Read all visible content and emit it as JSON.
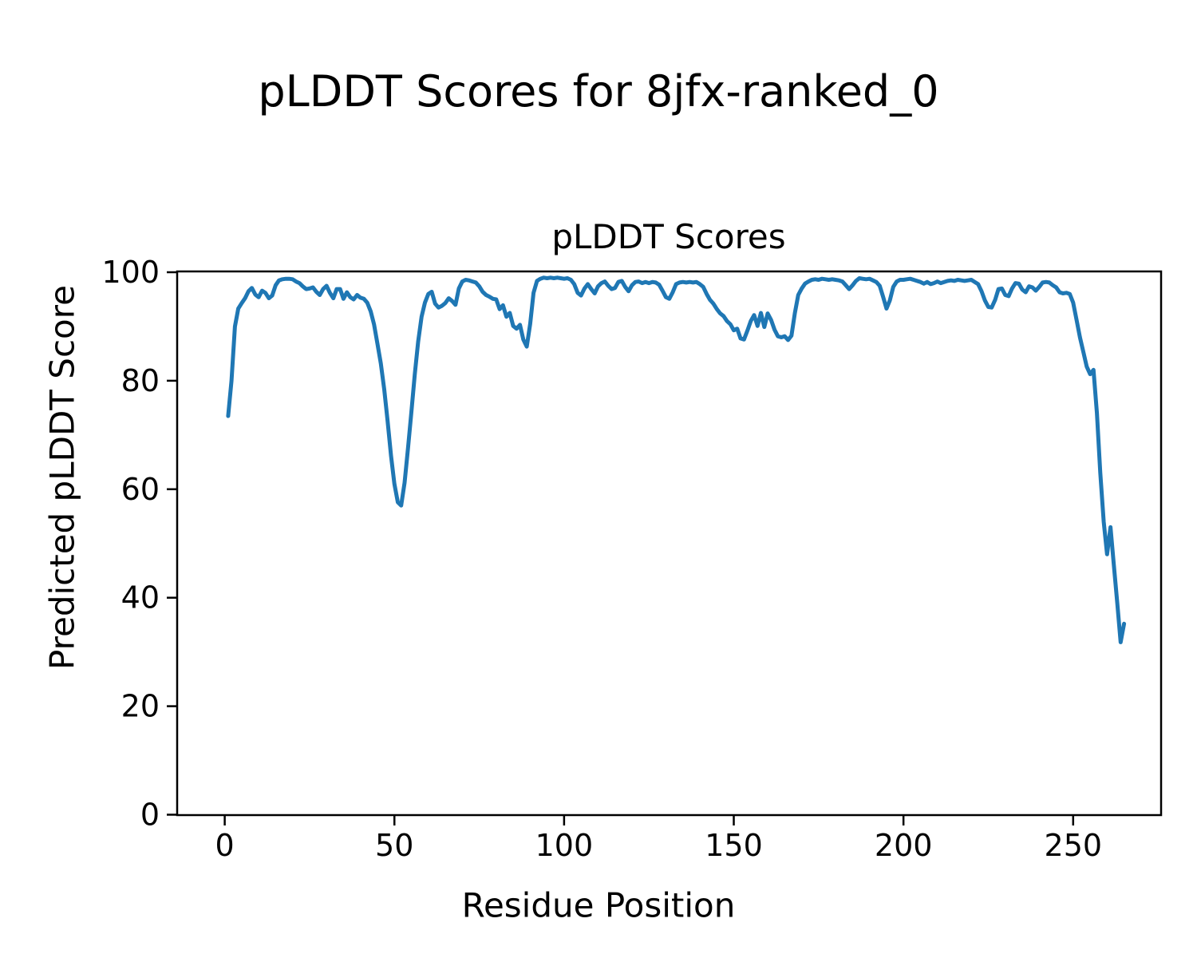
{
  "figure": {
    "suptitle": "pLDDT Scores for 8jfx-ranked_0",
    "axes_title": "pLDDT Scores",
    "xlabel": "Residue Position",
    "ylabel": "Predicted pLDDT Score"
  },
  "chart_data": {
    "type": "line",
    "title": "pLDDT Scores",
    "suptitle": "pLDDT Scores for 8jfx-ranked_0",
    "xlabel": "Residue Position",
    "ylabel": "Predicted pLDDT Score",
    "x_ticks": [
      0,
      50,
      100,
      150,
      200,
      250
    ],
    "y_ticks": [
      0,
      20,
      40,
      60,
      80,
      100
    ],
    "ylim": [
      0,
      100
    ],
    "xlim": [
      -13,
      278
    ],
    "grid": false,
    "legend": null,
    "line_color": "#1f77b4",
    "axis_color": "#000000",
    "series": [
      {
        "name": "pLDDT",
        "x_start": 1,
        "x_step": 1,
        "values": [
          73.5,
          80.0,
          90.0,
          93.3,
          94.3,
          95.2,
          96.5,
          97.1,
          95.9,
          95.4,
          96.6,
          96.2,
          95.2,
          95.7,
          97.6,
          98.5,
          98.7,
          98.8,
          98.8,
          98.7,
          98.3,
          98.0,
          97.4,
          96.9,
          97.0,
          97.2,
          96.4,
          95.8,
          96.9,
          97.5,
          96.2,
          95.2,
          96.9,
          96.9,
          95.1,
          96.3,
          95.4,
          95.0,
          95.8,
          95.3,
          95.1,
          94.4,
          92.8,
          90.4,
          86.8,
          83.2,
          78.4,
          72.6,
          66.2,
          61.0,
          57.6,
          57.0,
          61.2,
          67.6,
          74.2,
          81.2,
          87.2,
          91.8,
          94.4,
          96.0,
          96.4,
          94.2,
          93.5,
          93.8,
          94.3,
          95.2,
          94.7,
          94.0,
          97.0,
          98.3,
          98.6,
          98.5,
          98.3,
          98.1,
          97.4,
          96.4,
          95.8,
          95.5,
          95.1,
          95.0,
          93.2,
          93.9,
          91.8,
          92.5,
          90.1,
          89.6,
          90.3,
          87.6,
          86.3,
          90.5,
          96.2,
          98.4,
          98.8,
          99.0,
          98.9,
          99.0,
          98.9,
          99.0,
          98.9,
          98.8,
          98.9,
          98.6,
          97.8,
          96.2,
          95.7,
          97.0,
          97.8,
          96.9,
          96.1,
          97.4,
          98.0,
          98.3,
          97.5,
          96.9,
          97.1,
          98.2,
          98.4,
          97.3,
          96.5,
          97.6,
          98.2,
          98.3,
          98.0,
          98.2,
          98.0,
          98.2,
          98.1,
          97.7,
          96.6,
          95.4,
          95.1,
          96.3,
          97.8,
          98.1,
          98.2,
          98.1,
          98.2,
          98.1,
          98.2,
          97.8,
          97.3,
          96.0,
          94.9,
          94.2,
          93.2,
          92.4,
          91.9,
          91.0,
          90.4,
          89.3,
          89.6,
          87.8,
          87.6,
          89.2,
          91.0,
          92.1,
          90.1,
          92.5,
          89.9,
          92.4,
          91.2,
          89.4,
          88.2,
          88.0,
          88.2,
          87.5,
          88.3,
          92.5,
          95.8,
          97.0,
          97.9,
          98.3,
          98.6,
          98.7,
          98.6,
          98.8,
          98.7,
          98.6,
          98.7,
          98.6,
          98.5,
          98.3,
          97.6,
          96.9,
          97.6,
          98.4,
          98.9,
          98.8,
          98.7,
          98.8,
          98.5,
          98.2,
          97.5,
          95.5,
          93.3,
          94.8,
          97.3,
          98.3,
          98.6,
          98.6,
          98.7,
          98.8,
          98.6,
          98.4,
          98.2,
          97.9,
          98.2,
          97.8,
          98.0,
          98.3,
          98.0,
          98.2,
          98.4,
          98.5,
          98.4,
          98.6,
          98.5,
          98.4,
          98.5,
          98.6,
          98.2,
          97.8,
          96.5,
          94.8,
          93.6,
          93.5,
          94.9,
          96.9,
          97.0,
          95.8,
          95.6,
          97.0,
          98.0,
          97.9,
          96.8,
          96.3,
          97.4,
          97.2,
          96.6,
          97.3,
          98.1,
          98.2,
          98.1,
          97.6,
          97.2,
          96.3,
          96.1,
          96.2,
          96.0,
          94.4,
          91.2,
          88.0,
          85.3,
          82.6,
          81.2,
          82.0,
          74.0,
          63.0,
          54.0,
          48.0,
          53.0,
          46.0,
          39.0,
          31.8,
          35.2
        ]
      }
    ]
  }
}
